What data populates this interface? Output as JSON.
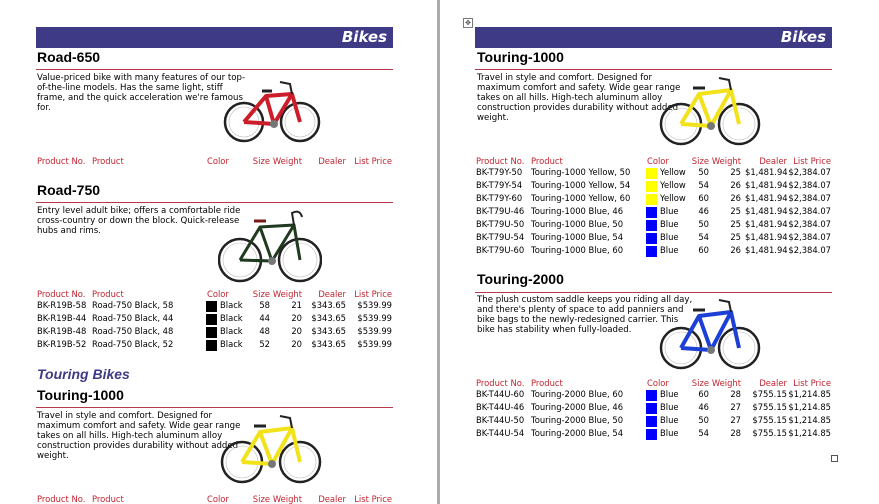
{
  "banner": "Bikes",
  "columns": {
    "product_no": "Product No.",
    "product": "Product",
    "color": "Color",
    "size": "Size",
    "weight": "Weight",
    "dealer": "Dealer",
    "list_price": "List Price"
  },
  "colors": {
    "black": "#000000",
    "yellow": "#ffff00",
    "blue": "#0000ff",
    "red": "#cc1d2a",
    "banner": "#3e3a85",
    "header_text": "#c0232f"
  },
  "road650": {
    "title": "Road-650",
    "desc": [
      "Value-priced bike with many features of our top-",
      "of-the-line models. Has the same light, stiff",
      "frame, and the quick acceleration we're famous",
      "for."
    ]
  },
  "road750": {
    "title": "Road-750",
    "desc": [
      "Entry level adult bike; offers a comfortable ride",
      "cross-country or down the block. Quick-release",
      "hubs and rims."
    ],
    "rows": [
      {
        "no": "BK-R19B-58",
        "name": "Road-750 Black, 58",
        "color": "Black",
        "size": "58",
        "weight": "21",
        "dealer": "$343.65",
        "list": "$539.99"
      },
      {
        "no": "BK-R19B-44",
        "name": "Road-750 Black, 44",
        "color": "Black",
        "size": "44",
        "weight": "20",
        "dealer": "$343.65",
        "list": "$539.99"
      },
      {
        "no": "BK-R19B-48",
        "name": "Road-750 Black, 48",
        "color": "Black",
        "size": "48",
        "weight": "20",
        "dealer": "$343.65",
        "list": "$539.99"
      },
      {
        "no": "BK-R19B-52",
        "name": "Road-750 Black, 52",
        "color": "Black",
        "size": "52",
        "weight": "20",
        "dealer": "$343.65",
        "list": "$539.99"
      }
    ]
  },
  "touring_heading": "Touring Bikes",
  "touring1000": {
    "title": "Touring-1000",
    "desc": [
      "Travel in style and comfort. Designed for",
      "maximum comfort and safety. Wide gear range",
      "takes on all hills. High-tech aluminum alloy",
      "construction provides durability without added",
      "weight."
    ],
    "rows": [
      {
        "no": "BK-T79Y-50",
        "name": "Touring-1000 Yellow, 50",
        "color": "Yellow",
        "size": "50",
        "weight": "25",
        "dealer": "$1,481.94",
        "list": "$2,384.07"
      },
      {
        "no": "BK-T79Y-54",
        "name": "Touring-1000 Yellow, 54",
        "color": "Yellow",
        "size": "54",
        "weight": "26",
        "dealer": "$1,481.94",
        "list": "$2,384.07"
      },
      {
        "no": "BK-T79Y-60",
        "name": "Touring-1000 Yellow, 60",
        "color": "Yellow",
        "size": "60",
        "weight": "26",
        "dealer": "$1,481.94",
        "list": "$2,384.07"
      },
      {
        "no": "BK-T79U-46",
        "name": "Touring-1000 Blue, 46",
        "color": "Blue",
        "size": "46",
        "weight": "25",
        "dealer": "$1,481.94",
        "list": "$2,384.07"
      },
      {
        "no": "BK-T79U-50",
        "name": "Touring-1000 Blue, 50",
        "color": "Blue",
        "size": "50",
        "weight": "25",
        "dealer": "$1,481.94",
        "list": "$2,384.07"
      },
      {
        "no": "BK-T79U-54",
        "name": "Touring-1000 Blue, 54",
        "color": "Blue",
        "size": "54",
        "weight": "25",
        "dealer": "$1,481.94",
        "list": "$2,384.07"
      },
      {
        "no": "BK-T79U-60",
        "name": "Touring-1000 Blue, 60",
        "color": "Blue",
        "size": "60",
        "weight": "26",
        "dealer": "$1,481.94",
        "list": "$2,384.07"
      }
    ]
  },
  "touring2000": {
    "title": "Touring-2000",
    "desc": [
      "The plush custom saddle keeps you riding all day,",
      "and there's plenty of space to add panniers and",
      "bike bags to the newly-redesigned carrier.  This",
      "bike has stability when fully-loaded."
    ],
    "rows": [
      {
        "no": "BK-T44U-60",
        "name": "Touring-2000 Blue, 60",
        "color": "Blue",
        "size": "60",
        "weight": "28",
        "dealer": "$755.15",
        "list": "$1,214.85"
      },
      {
        "no": "BK-T44U-46",
        "name": "Touring-2000 Blue, 46",
        "color": "Blue",
        "size": "46",
        "weight": "27",
        "dealer": "$755.15",
        "list": "$1,214.85"
      },
      {
        "no": "BK-T44U-50",
        "name": "Touring-2000 Blue, 50",
        "color": "Blue",
        "size": "50",
        "weight": "27",
        "dealer": "$755.15",
        "list": "$1,214.85"
      },
      {
        "no": "BK-T44U-54",
        "name": "Touring-2000 Blue, 54",
        "color": "Blue",
        "size": "54",
        "weight": "28",
        "dealer": "$755.15",
        "list": "$1,214.85"
      }
    ]
  }
}
